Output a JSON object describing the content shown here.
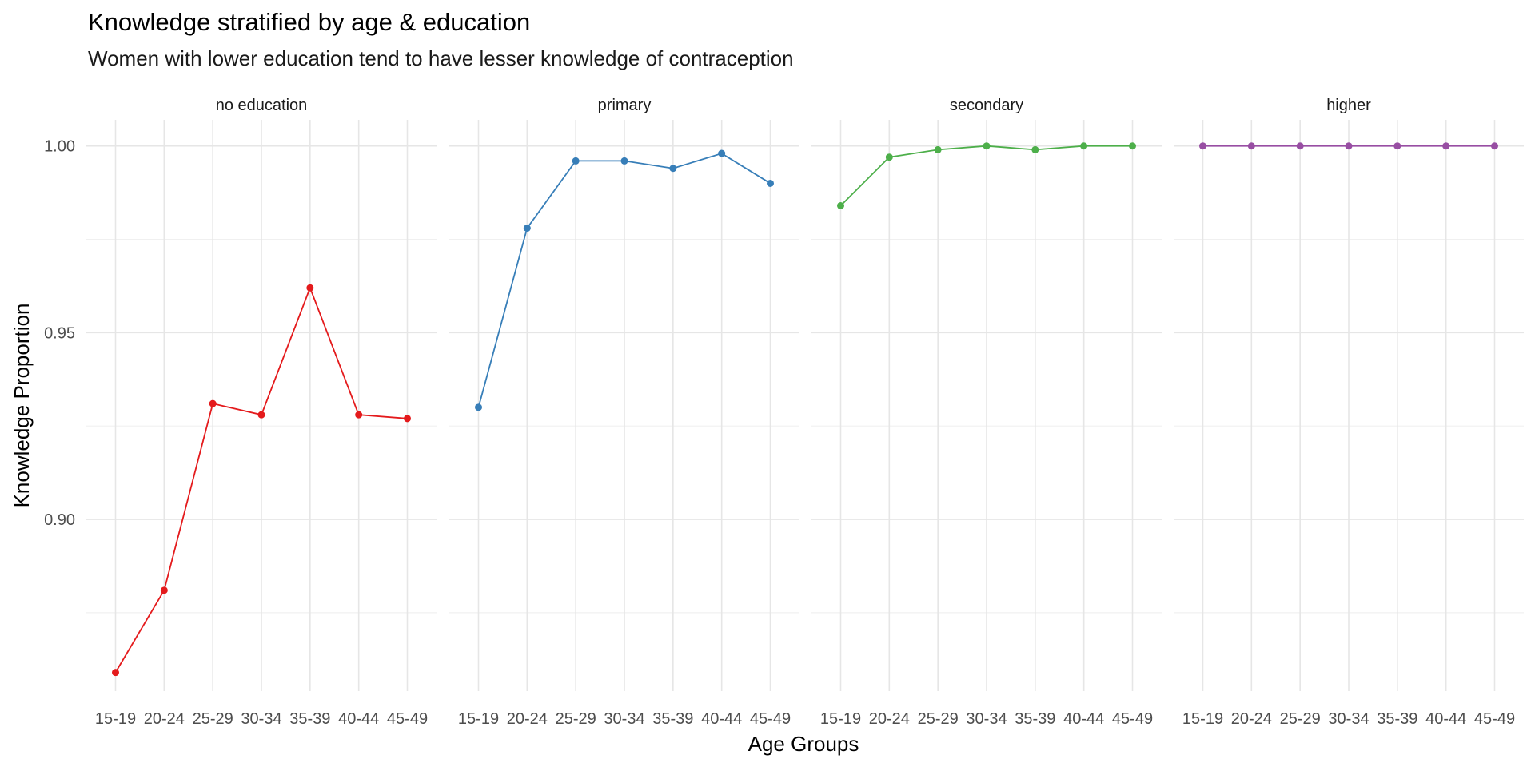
{
  "chart_data": {
    "type": "line",
    "title": "Knowledge stratified by age & education",
    "subtitle": "Women with lower education tend to have lesser knowledge of contraception",
    "xlabel": "Age Groups",
    "ylabel": "Knowledge Proportion",
    "categories": [
      "15-19",
      "20-24",
      "25-29",
      "30-34",
      "35-39",
      "40-44",
      "45-49"
    ],
    "yticks": [
      0.9,
      0.95,
      1.0
    ],
    "ytick_labels": [
      "0.90",
      "0.95",
      "1.00"
    ],
    "ylim": [
      0.854,
      1.007
    ],
    "grid": true,
    "legend": "none",
    "facets": [
      {
        "name": "no education",
        "color": "#e41a1c",
        "values": [
          0.859,
          0.881,
          0.931,
          0.928,
          0.962,
          0.928,
          0.927
        ]
      },
      {
        "name": "primary",
        "color": "#377eb8",
        "values": [
          0.93,
          0.978,
          0.996,
          0.996,
          0.994,
          0.998,
          0.99
        ]
      },
      {
        "name": "secondary",
        "color": "#4daf4a",
        "values": [
          0.984,
          0.997,
          0.999,
          1.0,
          0.999,
          1.0,
          1.0
        ]
      },
      {
        "name": "higher",
        "color": "#984ea3",
        "values": [
          1.0,
          1.0,
          1.0,
          1.0,
          1.0,
          1.0,
          1.0
        ]
      }
    ]
  }
}
